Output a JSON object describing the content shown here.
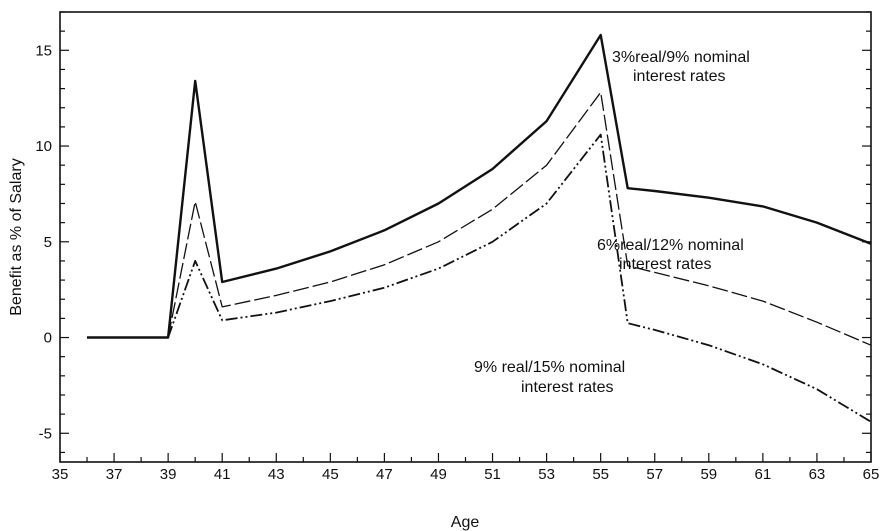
{
  "chart_data": {
    "type": "line",
    "xlabel": "Age",
    "ylabel": "Benefit as % of Salary",
    "xlim": [
      35,
      65
    ],
    "ylim": [
      -6.5,
      17
    ],
    "x_ticks": [
      35,
      37,
      39,
      41,
      43,
      45,
      47,
      49,
      51,
      53,
      55,
      57,
      59,
      61,
      63,
      65
    ],
    "y_ticks": [
      -5,
      0,
      5,
      10,
      15
    ],
    "grid": false,
    "series": [
      {
        "style": "solid",
        "points": [
          [
            36,
            0
          ],
          [
            39,
            0
          ],
          [
            40,
            13.4
          ],
          [
            41,
            2.9
          ],
          [
            43,
            3.6
          ],
          [
            45,
            4.5
          ],
          [
            47,
            5.6
          ],
          [
            49,
            7.0
          ],
          [
            51,
            8.8
          ],
          [
            53,
            11.3
          ],
          [
            55,
            15.8
          ],
          [
            56,
            7.8
          ],
          [
            57,
            7.65
          ],
          [
            59,
            7.3
          ],
          [
            61,
            6.85
          ],
          [
            63,
            6.0
          ],
          [
            65,
            4.9
          ]
        ]
      },
      {
        "style": "dashed",
        "points": [
          [
            39,
            0
          ],
          [
            40,
            7.1
          ],
          [
            41,
            1.6
          ],
          [
            43,
            2.2
          ],
          [
            45,
            2.9
          ],
          [
            47,
            3.8
          ],
          [
            49,
            5.0
          ],
          [
            51,
            6.7
          ],
          [
            53,
            9.0
          ],
          [
            55,
            12.8
          ],
          [
            56,
            3.75
          ],
          [
            57,
            3.4
          ],
          [
            59,
            2.7
          ],
          [
            61,
            1.9
          ],
          [
            63,
            0.8
          ],
          [
            65,
            -0.4
          ]
        ]
      },
      {
        "style": "dash-dot-dot",
        "points": [
          [
            39,
            0
          ],
          [
            40,
            4.0
          ],
          [
            41,
            0.9
          ],
          [
            43,
            1.3
          ],
          [
            45,
            1.9
          ],
          [
            47,
            2.6
          ],
          [
            49,
            3.6
          ],
          [
            51,
            5.0
          ],
          [
            53,
            7.0
          ],
          [
            55,
            10.6
          ],
          [
            56,
            0.75
          ],
          [
            57,
            0.4
          ],
          [
            59,
            -0.4
          ],
          [
            61,
            -1.4
          ],
          [
            63,
            -2.7
          ],
          [
            65,
            -4.4
          ]
        ]
      }
    ],
    "annotations": [
      {
        "lines": [
          "3%real/9% nominal",
          "interest rates"
        ]
      },
      {
        "lines": [
          "6%real/12% nominal",
          "interest rates"
        ]
      },
      {
        "lines": [
          "9% real/15% nominal",
          "interest rates"
        ]
      }
    ]
  }
}
